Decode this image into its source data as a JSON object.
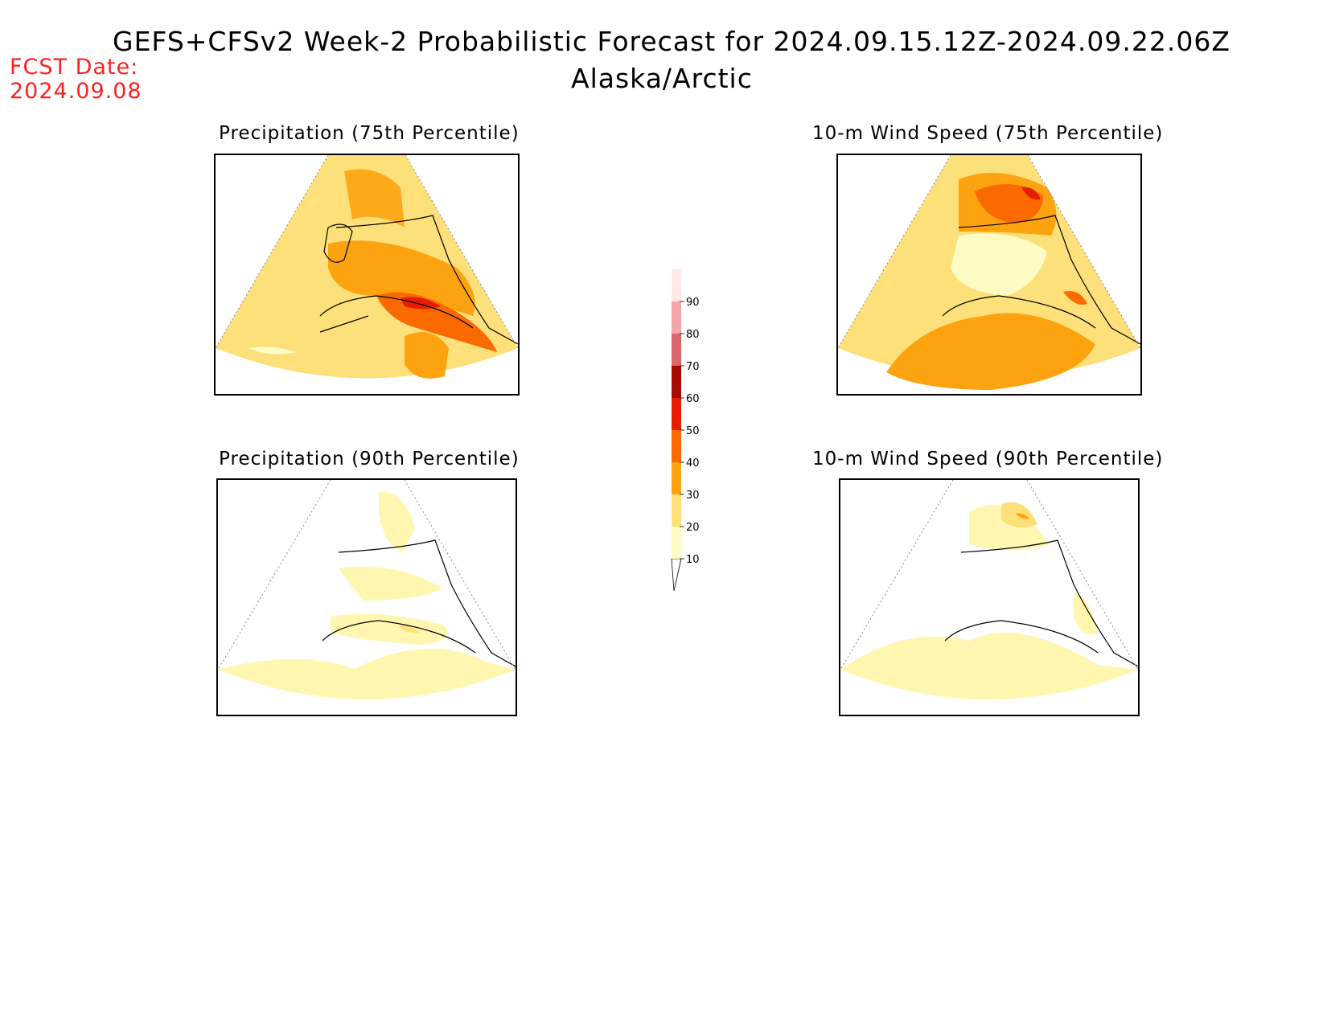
{
  "header": {
    "title": "GEFS+CFSv2 Week-2 Probabilistic Forecast for 2024.09.15.12Z-2024.09.22.06Z",
    "region": "Alaska/Arctic",
    "fcst_label": "FCST Date:",
    "fcst_date": "2024.09.08"
  },
  "panels": [
    {
      "id": "precip75",
      "title": "Precipitation (75th Percentile)",
      "base_color": "#fde07a",
      "dominant_bin": "20-30"
    },
    {
      "id": "wind75",
      "title": "10-m Wind Speed (75th Percentile)",
      "base_color": "#fde07a",
      "dominant_bin": "20-40"
    },
    {
      "id": "precip90",
      "title": "Precipitation (90th Percentile)",
      "base_color": "#fff7b0",
      "dominant_bin": "10-20"
    },
    {
      "id": "wind90",
      "title": "10-m Wind Speed (90th Percentile)",
      "base_color": "#fff7b0",
      "dominant_bin": "10-20"
    }
  ],
  "colorbar": {
    "ticks": [
      "10",
      "20",
      "30",
      "40",
      "50",
      "60",
      "70",
      "80",
      "90"
    ],
    "colors": [
      "#fffbc4",
      "#fde07a",
      "#fda30f",
      "#fb6a00",
      "#e81d00",
      "#a80a00",
      "#d9676c",
      "#f2a6a8",
      "#fde9ea"
    ]
  }
}
